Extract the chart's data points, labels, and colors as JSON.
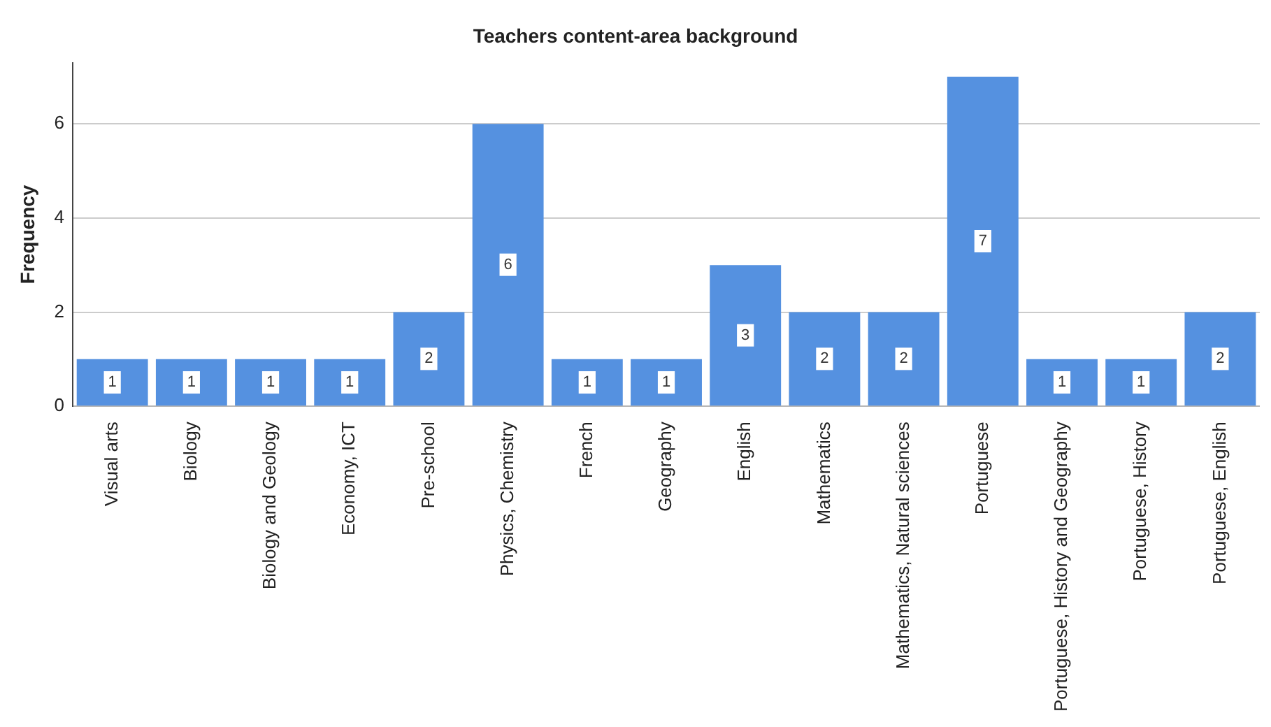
{
  "chart_data": {
    "type": "bar",
    "title": "Teachers content-area background",
    "ylabel": "Frequency",
    "categories": [
      "Visual arts",
      "Biology",
      "Biology and Geology",
      "Economy, ICT",
      "Pre-school",
      "Physics, Chemistry",
      "French",
      "Geography",
      "English",
      "Mathematics",
      "Mathematics, Natural sciences",
      "Portuguese",
      "Portuguese, History and Geography",
      "Portuguese, History",
      "Portuguese, English"
    ],
    "values": [
      1,
      1,
      1,
      1,
      2,
      6,
      1,
      1,
      3,
      2,
      2,
      7,
      1,
      1,
      2
    ],
    "color": "#5591e0",
    "ylim": [
      0,
      7.3
    ],
    "yticks": [
      0,
      2,
      4,
      6
    ],
    "grid": "y",
    "data_labels": true
  }
}
